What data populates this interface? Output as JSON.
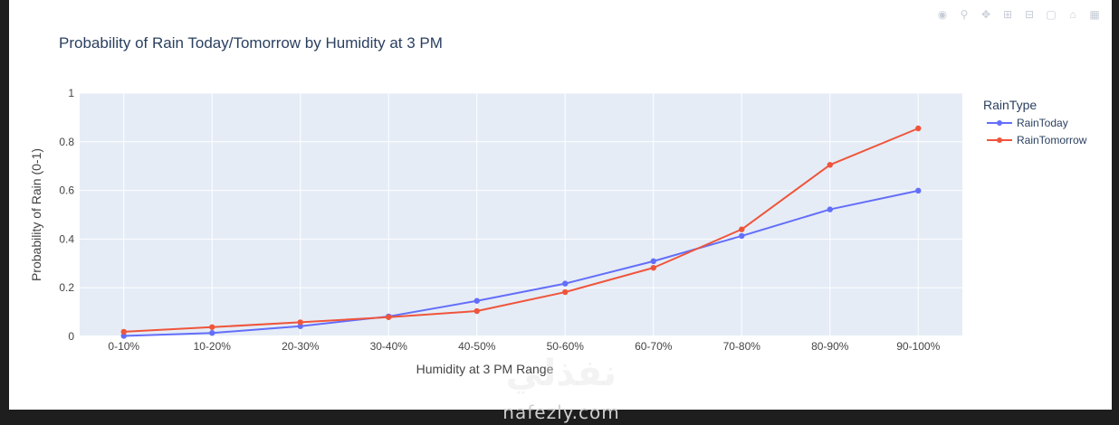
{
  "modebar": {
    "icons": [
      "camera-icon",
      "zoom-icon",
      "pan-icon",
      "zoom-in-icon",
      "zoom-out-icon",
      "autoscale-icon",
      "reset-axes-icon",
      "plotly-logo-icon"
    ]
  },
  "watermark": {
    "text": "نفذلي",
    "domain": "nafezly.com"
  },
  "colors": {
    "plot_bg": "#e5ecf6",
    "grid": "#ffffff",
    "rain_today": "#636efa",
    "rain_tomorrow": "#ef553b",
    "text": "#2a3f5f",
    "tick_text": "#444444"
  },
  "chart_data": {
    "type": "line",
    "title": "Probability of Rain Today/Tomorrow by Humidity at 3 PM",
    "xlabel": "Humidity at 3 PM Range",
    "ylabel": "Probability of Rain (0-1)",
    "categories": [
      "0-10%",
      "10-20%",
      "20-30%",
      "30-40%",
      "40-50%",
      "50-60%",
      "60-70%",
      "70-80%",
      "80-90%",
      "90-100%"
    ],
    "ylim": [
      0,
      1
    ],
    "yticks": [
      0,
      0.2,
      0.4,
      0.6,
      0.8,
      1
    ],
    "ytick_labels": [
      "0",
      "0.2",
      "0.4",
      "0.6",
      "0.8",
      "1"
    ],
    "legend_title": "RainType",
    "legend_position": "right",
    "grid": true,
    "series": [
      {
        "name": "RainToday",
        "values": [
          0.002,
          0.014,
          0.042,
          0.082,
          0.146,
          0.217,
          0.309,
          0.413,
          0.522,
          0.599
        ]
      },
      {
        "name": "RainTomorrow",
        "values": [
          0.019,
          0.038,
          0.058,
          0.079,
          0.104,
          0.182,
          0.282,
          0.44,
          0.705,
          0.855
        ]
      }
    ]
  }
}
